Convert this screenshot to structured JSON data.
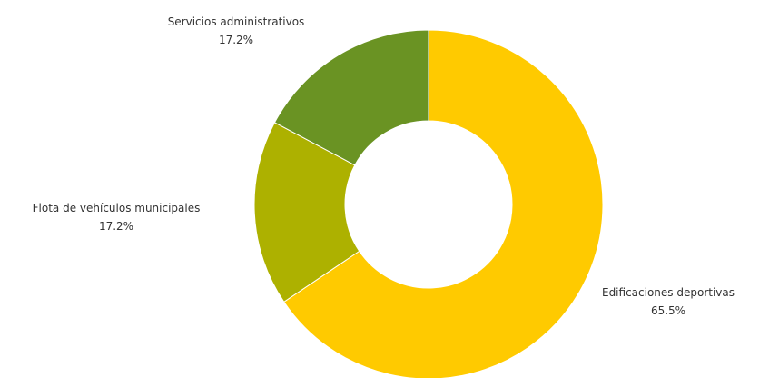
{
  "chart_data": {
    "type": "pie",
    "variant": "donut",
    "title": "",
    "slices": [
      {
        "label": "Edificaciones deportivas",
        "value": 65.5,
        "value_label": "65.5%",
        "color": "#FFCA00"
      },
      {
        "label": "Flota de vehículos municipales",
        "value": 17.2,
        "value_label": "17.2%",
        "color": "#ADB100"
      },
      {
        "label": "Servicios administrativos",
        "value": 17.2,
        "value_label": "17.2%",
        "color": "#6A9323"
      }
    ],
    "start_angle_deg": 0,
    "direction": "clockwise",
    "legend": "none",
    "labels": "outside"
  }
}
